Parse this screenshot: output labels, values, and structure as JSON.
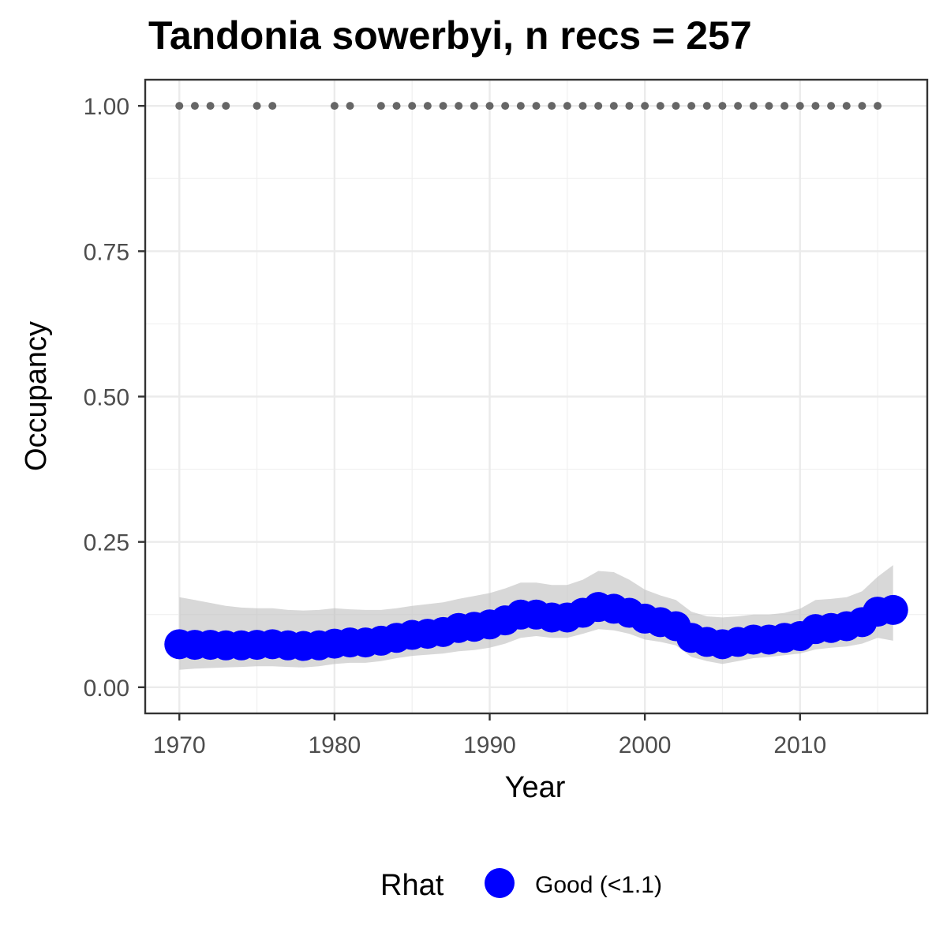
{
  "chart_data": {
    "type": "line",
    "title": "Tandonia sowerbyi, n recs = 257",
    "xlabel": "Year",
    "ylabel": "Occupancy",
    "xlim": [
      1967.8,
      2018.2
    ],
    "ylim": [
      -0.045,
      1.045
    ],
    "x_ticks": [
      1970,
      1980,
      1990,
      2000,
      2010
    ],
    "x_tick_labels": [
      "1970",
      "1980",
      "1990",
      "2000",
      "2010"
    ],
    "y_ticks": [
      0,
      0.25,
      0.5,
      0.75,
      1.0
    ],
    "y_tick_labels": [
      "0.00",
      "0.25",
      "0.50",
      "0.75",
      "1.00"
    ],
    "grid": true,
    "series": [
      {
        "name": "Occupancy",
        "x": [
          1970,
          1971,
          1972,
          1973,
          1974,
          1975,
          1976,
          1977,
          1978,
          1979,
          1980,
          1981,
          1982,
          1983,
          1984,
          1985,
          1986,
          1987,
          1988,
          1989,
          1990,
          1991,
          1992,
          1993,
          1994,
          1995,
          1996,
          1997,
          1998,
          1999,
          2000,
          2001,
          2002,
          2003,
          2004,
          2005,
          2006,
          2007,
          2008,
          2009,
          2010,
          2011,
          2012,
          2013,
          2014,
          2015,
          2016
        ],
        "y": [
          0.074,
          0.073,
          0.073,
          0.072,
          0.072,
          0.073,
          0.074,
          0.072,
          0.071,
          0.072,
          0.075,
          0.077,
          0.077,
          0.08,
          0.085,
          0.09,
          0.092,
          0.095,
          0.102,
          0.104,
          0.108,
          0.115,
          0.125,
          0.125,
          0.12,
          0.12,
          0.128,
          0.138,
          0.135,
          0.128,
          0.118,
          0.112,
          0.105,
          0.085,
          0.078,
          0.074,
          0.078,
          0.082,
          0.082,
          0.085,
          0.088,
          0.1,
          0.102,
          0.105,
          0.112,
          0.13,
          0.133
        ],
        "lower": [
          0.03,
          0.032,
          0.033,
          0.034,
          0.035,
          0.036,
          0.036,
          0.035,
          0.034,
          0.036,
          0.04,
          0.042,
          0.042,
          0.045,
          0.05,
          0.054,
          0.056,
          0.058,
          0.062,
          0.064,
          0.068,
          0.075,
          0.085,
          0.088,
          0.085,
          0.085,
          0.092,
          0.1,
          0.098,
          0.092,
          0.082,
          0.078,
          0.072,
          0.052,
          0.045,
          0.04,
          0.045,
          0.05,
          0.052,
          0.055,
          0.058,
          0.065,
          0.068,
          0.07,
          0.075,
          0.085,
          0.08
        ],
        "upper": [
          0.155,
          0.15,
          0.145,
          0.14,
          0.137,
          0.136,
          0.136,
          0.133,
          0.132,
          0.133,
          0.136,
          0.134,
          0.133,
          0.133,
          0.136,
          0.14,
          0.143,
          0.146,
          0.152,
          0.157,
          0.162,
          0.17,
          0.18,
          0.18,
          0.176,
          0.176,
          0.185,
          0.2,
          0.198,
          0.185,
          0.168,
          0.158,
          0.15,
          0.13,
          0.122,
          0.12,
          0.122,
          0.125,
          0.125,
          0.128,
          0.135,
          0.15,
          0.152,
          0.155,
          0.165,
          0.19,
          0.21
        ],
        "color": "#0000ff"
      }
    ],
    "records": {
      "y": 1.0,
      "x": [
        1970,
        1971,
        1972,
        1973,
        1975,
        1976,
        1980,
        1981,
        1983,
        1984,
        1985,
        1986,
        1987,
        1988,
        1989,
        1990,
        1991,
        1992,
        1993,
        1994,
        1995,
        1996,
        1997,
        1998,
        1999,
        2000,
        2001,
        2002,
        2003,
        2004,
        2005,
        2006,
        2007,
        2008,
        2009,
        2010,
        2011,
        2012,
        2013,
        2014,
        2015
      ],
      "color": "#666666"
    },
    "ribbon_color": "#bebebe",
    "legend": {
      "position": "bottom",
      "title": "Rhat",
      "items": [
        {
          "label": "Good (<1.1)",
          "color": "#0000ff"
        }
      ]
    }
  }
}
